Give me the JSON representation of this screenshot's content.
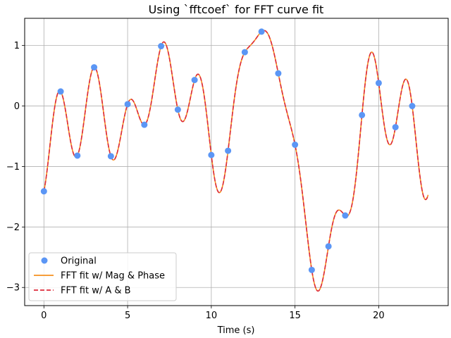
{
  "chart_data": {
    "type": "line",
    "title": "Using `fftcoef` for FFT curve fit",
    "xlabel": "Time (s)",
    "ylabel": "",
    "xlim": [
      -1.15,
      24.15
    ],
    "ylim": [
      -3.3,
      1.45
    ],
    "x_ticks": [
      0,
      5,
      10,
      15,
      20
    ],
    "y_ticks": [
      -3,
      -2,
      -1,
      0,
      1
    ],
    "x_tick_labels": [
      "0",
      "5",
      "10",
      "15",
      "20"
    ],
    "y_tick_labels": [
      "−3",
      "−2",
      "−1",
      "0",
      "1"
    ],
    "grid": true,
    "legend_position": "lower-left",
    "points": {
      "name": "Original",
      "color": "#5b96f5",
      "x": [
        0,
        1,
        2,
        3,
        4,
        5,
        6,
        7,
        8,
        9,
        10,
        11,
        12,
        13,
        14,
        15,
        16,
        17,
        18,
        19,
        20,
        21,
        22
      ],
      "y": [
        -1.41,
        0.24,
        -0.82,
        0.64,
        -0.83,
        0.03,
        -0.31,
        0.99,
        -0.06,
        0.43,
        -0.81,
        -0.74,
        0.89,
        1.23,
        0.54,
        -0.64,
        -2.71,
        -2.32,
        -1.81,
        -0.15,
        0.38,
        -0.35,
        0.0
      ]
    },
    "series": [
      {
        "name": "FFT fit w/ Mag & Phase",
        "color": "#f5901e",
        "dash": "solid"
      },
      {
        "name": "FFT fit w/ A & B",
        "color": "#dd2b3b",
        "dash": "dashed"
      }
    ],
    "fit_end_x": 22.95
  }
}
